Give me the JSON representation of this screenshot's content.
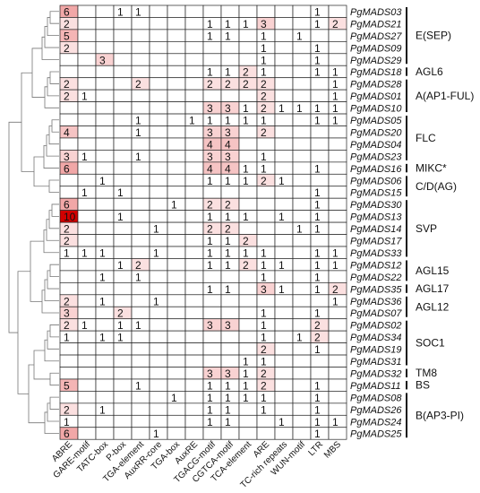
{
  "figure": {
    "columns": [
      "ABRE",
      "GARE-motif",
      "TATC-box",
      "P-box",
      "TGA-element",
      "AuxRR-core",
      "TGA-box",
      "AuxRE",
      "TGACG-motif",
      "CGTCA-motif",
      "TCA-element",
      "ARE",
      "TC-rich repeats",
      "WUN-motif",
      "LTR",
      "MBS"
    ],
    "rows": [
      {
        "gene": "PgMADS03",
        "values": [
          6,
          0,
          0,
          1,
          1,
          0,
          0,
          0,
          0,
          0,
          0,
          0,
          0,
          0,
          1,
          0
        ]
      },
      {
        "gene": "PgMADS21",
        "values": [
          2,
          0,
          0,
          0,
          0,
          0,
          0,
          0,
          1,
          1,
          1,
          3,
          0,
          0,
          1,
          2
        ]
      },
      {
        "gene": "PgMADS27",
        "values": [
          5,
          0,
          0,
          0,
          0,
          0,
          0,
          0,
          1,
          1,
          0,
          1,
          0,
          1,
          0,
          0
        ]
      },
      {
        "gene": "PgMADS09",
        "values": [
          2,
          0,
          0,
          0,
          0,
          0,
          0,
          0,
          0,
          0,
          0,
          1,
          0,
          0,
          1,
          0
        ]
      },
      {
        "gene": "PgMADS29",
        "values": [
          0,
          0,
          3,
          0,
          0,
          0,
          0,
          0,
          0,
          0,
          0,
          1,
          0,
          0,
          1,
          0
        ]
      },
      {
        "gene": "PgMADS18",
        "values": [
          0,
          0,
          0,
          0,
          0,
          0,
          0,
          0,
          1,
          1,
          2,
          1,
          0,
          0,
          1,
          1
        ]
      },
      {
        "gene": "PgMADS28",
        "values": [
          2,
          0,
          0,
          0,
          2,
          0,
          0,
          0,
          2,
          2,
          2,
          2,
          0,
          0,
          0,
          1
        ]
      },
      {
        "gene": "PgMADS01",
        "values": [
          2,
          1,
          0,
          0,
          0,
          0,
          0,
          0,
          0,
          0,
          0,
          2,
          0,
          0,
          0,
          1
        ]
      },
      {
        "gene": "PgMADS10",
        "values": [
          0,
          0,
          0,
          0,
          0,
          0,
          0,
          0,
          3,
          3,
          1,
          2,
          1,
          1,
          1,
          1
        ]
      },
      {
        "gene": "PgMADS05",
        "values": [
          0,
          0,
          0,
          0,
          1,
          0,
          0,
          1,
          1,
          1,
          1,
          1,
          0,
          0,
          1,
          1
        ]
      },
      {
        "gene": "PgMADS20",
        "values": [
          4,
          0,
          0,
          0,
          1,
          0,
          0,
          0,
          3,
          3,
          0,
          2,
          0,
          0,
          0,
          0
        ]
      },
      {
        "gene": "PgMADS04",
        "values": [
          0,
          0,
          0,
          0,
          0,
          0,
          0,
          0,
          4,
          4,
          0,
          0,
          0,
          0,
          0,
          0
        ]
      },
      {
        "gene": "PgMADS23",
        "values": [
          3,
          1,
          0,
          0,
          1,
          0,
          0,
          0,
          3,
          3,
          0,
          1,
          0,
          0,
          0,
          0
        ]
      },
      {
        "gene": "PgMADS16",
        "values": [
          6,
          0,
          0,
          0,
          0,
          0,
          0,
          0,
          4,
          4,
          1,
          1,
          0,
          0,
          1,
          0
        ]
      },
      {
        "gene": "PgMADS06",
        "values": [
          0,
          0,
          1,
          0,
          0,
          0,
          0,
          0,
          1,
          1,
          1,
          2,
          1,
          0,
          0,
          0
        ]
      },
      {
        "gene": "PgMADS15",
        "values": [
          0,
          1,
          0,
          1,
          0,
          0,
          0,
          0,
          0,
          0,
          0,
          0,
          0,
          0,
          1,
          0
        ]
      },
      {
        "gene": "PgMADS30",
        "values": [
          6,
          0,
          0,
          0,
          0,
          0,
          1,
          0,
          2,
          2,
          0,
          0,
          0,
          0,
          1,
          0
        ]
      },
      {
        "gene": "PgMADS13",
        "values": [
          10,
          0,
          0,
          1,
          0,
          0,
          0,
          0,
          1,
          1,
          1,
          0,
          1,
          0,
          1,
          0
        ]
      },
      {
        "gene": "PgMADS14",
        "values": [
          2,
          0,
          0,
          0,
          0,
          1,
          0,
          0,
          2,
          2,
          0,
          0,
          0,
          1,
          1,
          0
        ]
      },
      {
        "gene": "PgMADS17",
        "values": [
          2,
          0,
          0,
          0,
          0,
          0,
          0,
          0,
          1,
          1,
          2,
          0,
          0,
          0,
          0,
          0
        ]
      },
      {
        "gene": "PgMADS33",
        "values": [
          1,
          1,
          1,
          0,
          0,
          1,
          0,
          0,
          1,
          1,
          1,
          1,
          0,
          0,
          1,
          1
        ]
      },
      {
        "gene": "PgMADS12",
        "values": [
          0,
          0,
          0,
          1,
          2,
          0,
          0,
          0,
          1,
          1,
          2,
          1,
          1,
          0,
          1,
          1
        ]
      },
      {
        "gene": "PgMADS22",
        "values": [
          0,
          0,
          1,
          0,
          1,
          0,
          0,
          0,
          0,
          0,
          0,
          1,
          0,
          0,
          1,
          0
        ]
      },
      {
        "gene": "PgMADS35",
        "values": [
          0,
          0,
          0,
          0,
          0,
          0,
          0,
          0,
          1,
          1,
          0,
          3,
          1,
          0,
          1,
          2
        ]
      },
      {
        "gene": "PgMADS36",
        "values": [
          2,
          0,
          1,
          0,
          0,
          1,
          0,
          0,
          0,
          0,
          0,
          0,
          0,
          0,
          0,
          1
        ]
      },
      {
        "gene": "PgMADS07",
        "values": [
          3,
          0,
          0,
          2,
          0,
          0,
          0,
          0,
          0,
          0,
          0,
          1,
          0,
          0,
          1,
          0
        ]
      },
      {
        "gene": "PgMADS02",
        "values": [
          2,
          1,
          0,
          1,
          1,
          0,
          0,
          0,
          3,
          3,
          0,
          1,
          0,
          0,
          2,
          0
        ]
      },
      {
        "gene": "PgMADS34",
        "values": [
          1,
          0,
          1,
          1,
          0,
          0,
          0,
          0,
          0,
          0,
          0,
          1,
          0,
          1,
          2,
          0
        ]
      },
      {
        "gene": "PgMADS19",
        "values": [
          0,
          0,
          0,
          0,
          0,
          0,
          0,
          0,
          0,
          0,
          0,
          2,
          0,
          0,
          1,
          0
        ]
      },
      {
        "gene": "PgMADS31",
        "values": [
          0,
          0,
          0,
          0,
          0,
          0,
          0,
          0,
          0,
          0,
          1,
          1,
          0,
          0,
          0,
          0
        ]
      },
      {
        "gene": "PgMADS32",
        "values": [
          0,
          0,
          0,
          0,
          0,
          0,
          0,
          0,
          3,
          3,
          1,
          2,
          0,
          0,
          0,
          0
        ]
      },
      {
        "gene": "PgMADS11",
        "values": [
          5,
          0,
          0,
          0,
          1,
          0,
          0,
          0,
          1,
          1,
          1,
          2,
          0,
          0,
          1,
          0
        ]
      },
      {
        "gene": "PgMADS08",
        "values": [
          0,
          0,
          0,
          0,
          0,
          0,
          1,
          0,
          1,
          1,
          1,
          1,
          0,
          0,
          1,
          0
        ]
      },
      {
        "gene": "PgMADS26",
        "values": [
          2,
          0,
          1,
          0,
          0,
          0,
          0,
          0,
          1,
          1,
          0,
          1,
          0,
          0,
          1,
          0
        ]
      },
      {
        "gene": "PgMADS24",
        "values": [
          1,
          0,
          0,
          0,
          0,
          0,
          0,
          0,
          1,
          1,
          0,
          0,
          1,
          0,
          1,
          1
        ]
      },
      {
        "gene": "PgMADS25",
        "values": [
          6,
          0,
          0,
          0,
          0,
          1,
          0,
          0,
          0,
          0,
          0,
          0,
          0,
          0,
          1,
          0
        ]
      }
    ],
    "groups": [
      {
        "label": "E(SEP)",
        "start": 0,
        "end": 4
      },
      {
        "label": "AGL6",
        "start": 5,
        "end": 5
      },
      {
        "label": "A(AP1-FUL)",
        "start": 6,
        "end": 8
      },
      {
        "label": "FLC",
        "start": 9,
        "end": 12
      },
      {
        "label": "MIKC*",
        "start": 13,
        "end": 13
      },
      {
        "label": "C/D(AG)",
        "start": 14,
        "end": 15
      },
      {
        "label": "SVP",
        "start": 16,
        "end": 20
      },
      {
        "label": "AGL15",
        "start": 21,
        "end": 22
      },
      {
        "label": "AGL17",
        "start": 23,
        "end": 23
      },
      {
        "label": "AGL12",
        "start": 24,
        "end": 25
      },
      {
        "label": "SOC1",
        "start": 26,
        "end": 29
      },
      {
        "label": "TM8",
        "start": 30,
        "end": 30
      },
      {
        "label": "BS",
        "start": 31,
        "end": 31
      },
      {
        "label": "B(AP3-PI)",
        "start": 32,
        "end": 35
      }
    ],
    "color_scale": {
      "low": "#ffffff",
      "mid": "#f1a7a7",
      "high": "#d20000"
    }
  }
}
